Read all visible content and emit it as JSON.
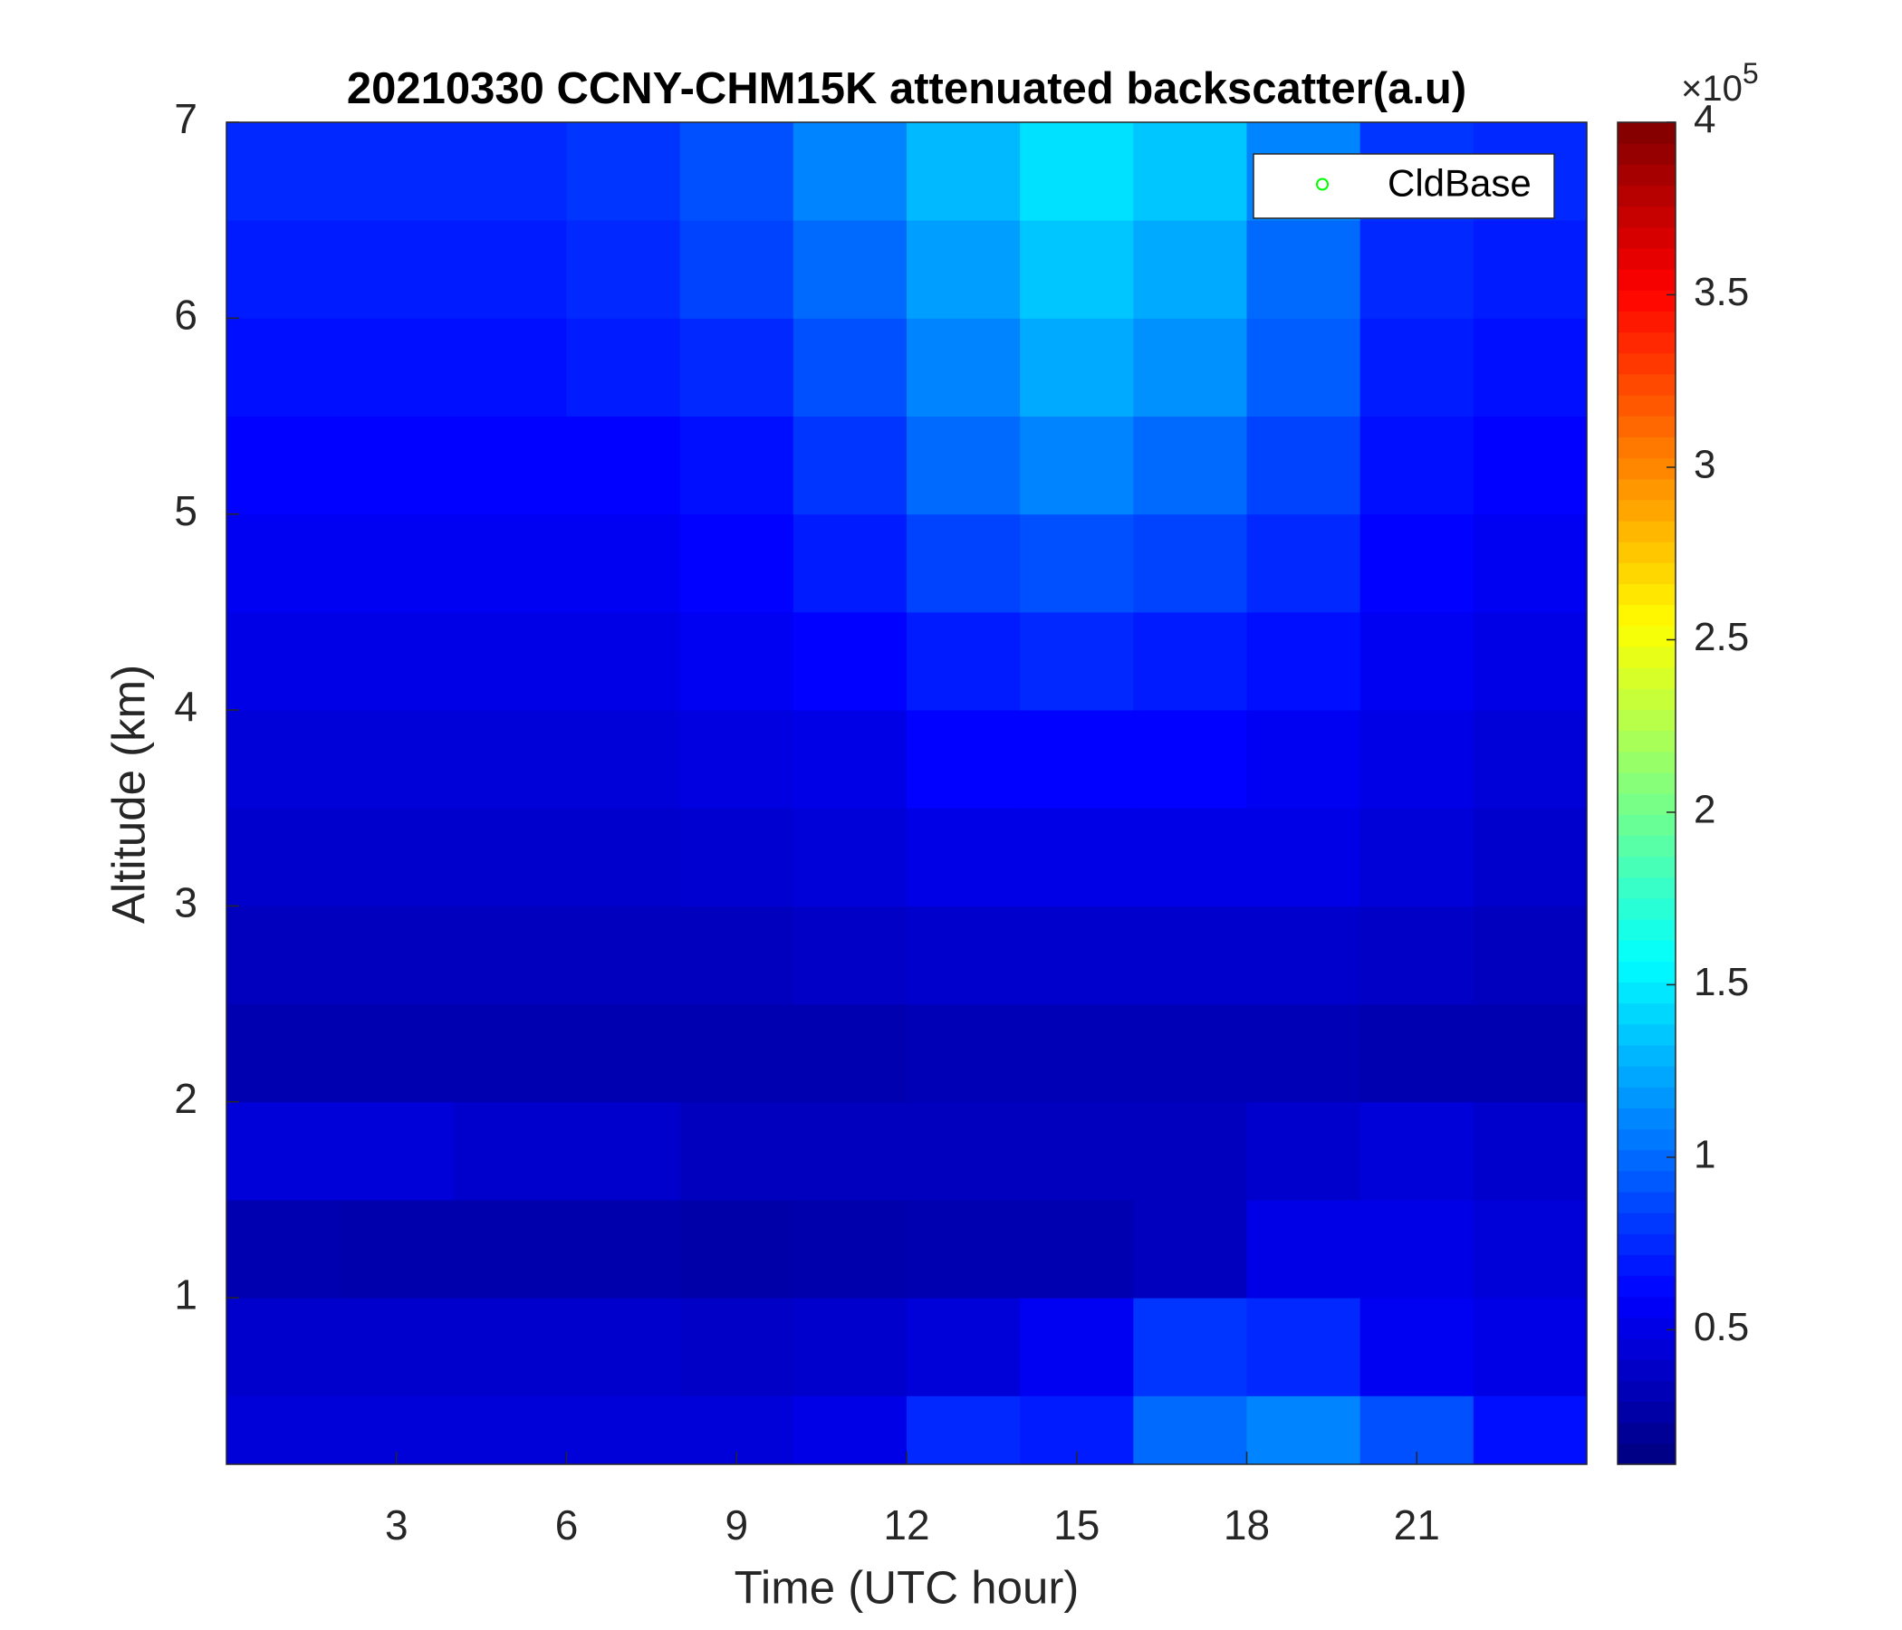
{
  "chart_data": {
    "type": "heatmap",
    "title": "20210330 CCNY-CHM15K attenuated backscatter(a.u)",
    "x_label": "Time (UTC hour)",
    "y_label": "Altitude (km)",
    "xbins": [
      0,
      2,
      4,
      6,
      8,
      10,
      12,
      14,
      16,
      18,
      20,
      22,
      24
    ],
    "ybins": [
      0.15,
      0.5,
      1,
      1.5,
      2,
      2.5,
      3,
      3.5,
      4,
      4.5,
      5,
      5.5,
      6,
      6.5,
      7
    ],
    "values": [
      [
        0.45,
        0.45,
        0.45,
        0.45,
        0.45,
        0.5,
        0.75,
        0.7,
        1.0,
        1.1,
        0.9,
        0.65
      ],
      [
        0.4,
        0.4,
        0.4,
        0.4,
        0.38,
        0.4,
        0.45,
        0.55,
        0.8,
        0.75,
        0.55,
        0.5
      ],
      [
        0.3,
        0.28,
        0.28,
        0.28,
        0.27,
        0.28,
        0.3,
        0.3,
        0.35,
        0.5,
        0.5,
        0.45
      ],
      [
        0.45,
        0.45,
        0.4,
        0.4,
        0.35,
        0.35,
        0.35,
        0.35,
        0.35,
        0.4,
        0.45,
        0.4
      ],
      [
        0.3,
        0.3,
        0.3,
        0.3,
        0.3,
        0.3,
        0.32,
        0.32,
        0.32,
        0.32,
        0.3,
        0.3
      ],
      [
        0.35,
        0.35,
        0.35,
        0.35,
        0.35,
        0.38,
        0.4,
        0.4,
        0.4,
        0.4,
        0.38,
        0.35
      ],
      [
        0.4,
        0.4,
        0.4,
        0.4,
        0.42,
        0.45,
        0.5,
        0.5,
        0.5,
        0.5,
        0.45,
        0.4
      ],
      [
        0.45,
        0.45,
        0.45,
        0.45,
        0.48,
        0.5,
        0.6,
        0.6,
        0.6,
        0.55,
        0.5,
        0.45
      ],
      [
        0.5,
        0.5,
        0.5,
        0.5,
        0.55,
        0.6,
        0.7,
        0.75,
        0.7,
        0.65,
        0.55,
        0.5
      ],
      [
        0.55,
        0.55,
        0.55,
        0.55,
        0.6,
        0.7,
        0.85,
        0.9,
        0.85,
        0.75,
        0.6,
        0.55
      ],
      [
        0.6,
        0.6,
        0.6,
        0.6,
        0.65,
        0.8,
        1.0,
        1.1,
        1.0,
        0.85,
        0.65,
        0.6
      ],
      [
        0.65,
        0.65,
        0.65,
        0.7,
        0.75,
        0.9,
        1.1,
        1.25,
        1.15,
        0.95,
        0.7,
        0.65
      ],
      [
        0.7,
        0.7,
        0.7,
        0.75,
        0.85,
        1.0,
        1.2,
        1.35,
        1.25,
        1.0,
        0.75,
        0.7
      ],
      [
        0.75,
        0.75,
        0.75,
        0.8,
        0.9,
        1.1,
        1.3,
        1.45,
        1.35,
        1.1,
        0.8,
        0.75
      ]
    ],
    "xlim": [
      0,
      24
    ],
    "xticks": [
      3,
      6,
      9,
      12,
      15,
      18,
      21
    ],
    "ylim": [
      0.15,
      7
    ],
    "yticks": [
      1,
      2,
      3,
      4,
      5,
      6,
      7
    ],
    "colormap": "jet",
    "clim": [
      0.11,
      4
    ],
    "cticks": [
      0.5,
      1,
      1.5,
      2,
      2.5,
      3,
      3.5,
      4
    ],
    "colorbar_multiplier": {
      "base": "×10",
      "power": 5
    },
    "legend": {
      "location": "northeast",
      "entries": [
        {
          "name": "CldBase",
          "color": "#00ff00",
          "marker": "o"
        }
      ]
    }
  }
}
